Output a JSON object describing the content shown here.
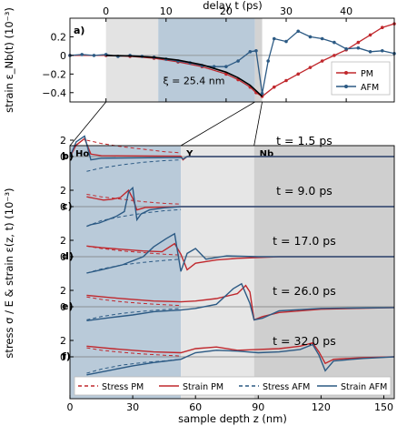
{
  "chart_data": [
    {
      "panel": "a)",
      "type": "line",
      "xlabel": "delay t (ps)",
      "ylabel": "strain ε_Nb(t) (10⁻³)",
      "xlim": [
        -6,
        48
      ],
      "ylim": [
        -0.5,
        0.4
      ],
      "xticks": [
        0,
        10,
        20,
        30,
        40
      ],
      "yticks": [
        0.2,
        0.0,
        -0.2,
        -0.4
      ],
      "ytick_labels": [
        "0.2",
        "0",
        "−0.2",
        "−0.4"
      ],
      "annotation": "ξ = 25.4 nm",
      "shaded_regions": [
        [
          0,
          8.7
        ],
        [
          8.7,
          24.8
        ],
        [
          24.8,
          26.0
        ]
      ],
      "legend": {
        "position": "right",
        "entries": [
          "PM",
          "AFM"
        ]
      },
      "series": [
        {
          "name": "PM",
          "color": "#c0282d",
          "x": [
            -6,
            0,
            4,
            8,
            12,
            16,
            20,
            22,
            24,
            25,
            26,
            28,
            30,
            32,
            34,
            36,
            38,
            40,
            42,
            44,
            46,
            48
          ],
          "y": [
            0,
            0,
            -0.01,
            -0.03,
            -0.07,
            -0.12,
            -0.2,
            -0.26,
            -0.34,
            -0.4,
            -0.44,
            -0.34,
            -0.27,
            -0.2,
            -0.13,
            -0.06,
            0.0,
            0.06,
            0.14,
            0.22,
            0.3,
            0.34
          ]
        },
        {
          "name": "AFM",
          "color": "#2c5a84",
          "x": [
            -6,
            -4,
            -2,
            0,
            2,
            4,
            6,
            8,
            10,
            12,
            14,
            16,
            18,
            20,
            22,
            24,
            25,
            26,
            27,
            28,
            30,
            32,
            34,
            36,
            38,
            40,
            42,
            44,
            46,
            48
          ],
          "y": [
            0,
            0.01,
            0.0,
            0.01,
            -0.01,
            0.0,
            -0.01,
            -0.02,
            -0.04,
            -0.06,
            -0.08,
            -0.11,
            -0.12,
            -0.12,
            -0.06,
            0.04,
            0.05,
            -0.41,
            -0.06,
            0.18,
            0.15,
            0.26,
            0.2,
            0.18,
            0.14,
            0.07,
            0.08,
            0.04,
            0.05,
            0.02
          ]
        },
        {
          "name": "fit",
          "color": "#000000",
          "x": [
            0,
            4,
            8,
            12,
            16,
            20,
            22,
            24,
            25,
            26
          ],
          "y": [
            0,
            -0.005,
            -0.02,
            -0.05,
            -0.1,
            -0.18,
            -0.24,
            -0.32,
            -0.38,
            -0.44
          ]
        }
      ]
    },
    {
      "panel": "b)–f)",
      "type": "line",
      "xlabel": "sample depth z (nm)",
      "ylabel": "stress σ / E & strain ε(z, t) (10⁻³)",
      "xlim": [
        0,
        155
      ],
      "xticks": [
        0,
        30,
        60,
        90,
        120,
        150
      ],
      "yticks": [
        2,
        0
      ],
      "layers": [
        {
          "name": "Ho",
          "z": [
            0,
            53
          ]
        },
        {
          "name": "Y",
          "z": [
            53,
            88
          ]
        },
        {
          "name": "Nb",
          "z": [
            88,
            155
          ]
        }
      ],
      "series_styles": [
        {
          "name": "Stress PM",
          "color": "#c0282d",
          "dash": true
        },
        {
          "name": "Strain PM",
          "color": "#c0282d",
          "dash": false
        },
        {
          "name": "Stress AFM",
          "color": "#2c5a84",
          "dash": true
        },
        {
          "name": "Strain AFM",
          "color": "#2c5a84",
          "dash": false
        }
      ],
      "panels": [
        {
          "label": "b)",
          "time": "t = 1.5 ps",
          "stress_pm": {
            "z": [
              8,
              15,
              25,
              35,
              45,
              53
            ],
            "y": [
              2.0,
              1.6,
              1.2,
              0.9,
              0.6,
              0.45
            ]
          },
          "strain_pm": {
            "z": [
              0,
              3,
              7,
              10,
              15,
              53,
              54,
              56,
              155
            ],
            "y": [
              0,
              1.4,
              2.2,
              0.3,
              0.1,
              0.05,
              -0.4,
              0,
              0
            ]
          },
          "stress_afm": {
            "z": [
              8,
              15,
              25,
              35,
              45,
              53
            ],
            "y": [
              -1.8,
              -1.4,
              -1.0,
              -0.7,
              -0.5,
              -0.4
            ]
          },
          "strain_afm": {
            "z": [
              0,
              3,
              7,
              10,
              15,
              53,
              54,
              56,
              155
            ],
            "y": [
              0,
              1.8,
              2.5,
              -0.4,
              -0.2,
              -0.1,
              -0.3,
              0,
              0
            ]
          }
        },
        {
          "label": "c)",
          "time": "t = 9.0 ps",
          "stress_pm": {
            "z": [
              8,
              15,
              25,
              35,
              45,
              53
            ],
            "y": [
              1.5,
              1.2,
              0.9,
              0.6,
              0.4,
              0.3
            ]
          },
          "strain_pm": {
            "z": [
              8,
              12,
              16,
              20,
              24,
              28,
              30,
              32,
              36,
              53,
              155
            ],
            "y": [
              1.2,
              1.0,
              0.8,
              0.9,
              1.1,
              2.0,
              1.0,
              -0.4,
              -0.1,
              0,
              0
            ]
          },
          "stress_afm": {
            "z": [
              8,
              15,
              25,
              35,
              45,
              53
            ],
            "y": [
              -2.4,
              -1.7,
              -1.2,
              -0.8,
              -0.5,
              -0.35
            ]
          },
          "strain_afm": {
            "z": [
              8,
              10,
              14,
              18,
              22,
              26,
              28,
              30,
              32,
              34,
              38,
              45,
              53,
              155
            ],
            "y": [
              -2.4,
              -2.2,
              -2.0,
              -1.6,
              -1.2,
              -0.6,
              1.8,
              2.3,
              -1.6,
              -0.9,
              -0.4,
              -0.15,
              0,
              0
            ]
          }
        },
        {
          "label": "d)",
          "time": "t = 17.0 ps",
          "stress_pm": {
            "z": [
              8,
              15,
              25,
              35,
              45,
              53
            ],
            "y": [
              1.3,
              1.0,
              0.7,
              0.5,
              0.3,
              0.2
            ]
          },
          "strain_pm": {
            "z": [
              8,
              15,
              25,
              35,
              44,
              50,
              53,
              56,
              60,
              70,
              80,
              100,
              155
            ],
            "y": [
              1.3,
              1.1,
              0.9,
              0.7,
              0.6,
              1.6,
              0.3,
              -1.6,
              -0.8,
              -0.4,
              -0.2,
              0,
              0
            ]
          },
          "stress_afm": {
            "z": [
              8,
              15,
              25,
              35,
              45,
              53
            ],
            "y": [
              -2.0,
              -1.5,
              -1.0,
              -0.7,
              -0.45,
              -0.3
            ]
          },
          "strain_afm": {
            "z": [
              8,
              15,
              25,
              35,
              40,
              46,
              50,
              53,
              56,
              60,
              65,
              75,
              90,
              155
            ],
            "y": [
              -2.0,
              -1.6,
              -1.0,
              0.0,
              1.2,
              2.2,
              2.8,
              -1.8,
              0.4,
              1.0,
              -0.3,
              0.1,
              0,
              0
            ]
          }
        },
        {
          "label": "e)",
          "time": "t = 26.0 ps",
          "stress_pm": {
            "z": [
              8,
              15,
              25,
              35,
              45,
              53
            ],
            "y": [
              1.2,
              0.9,
              0.6,
              0.4,
              0.25,
              0.15
            ]
          },
          "strain_pm": {
            "z": [
              8,
              20,
              30,
              40,
              53,
              60,
              70,
              80,
              84,
              86,
              88,
              92,
              100,
              120,
              155
            ],
            "y": [
              1.4,
              1.1,
              0.9,
              0.7,
              0.6,
              0.7,
              1.0,
              1.6,
              2.6,
              1.8,
              -1.6,
              -1.2,
              -0.7,
              -0.3,
              -0.1
            ]
          },
          "stress_afm": {
            "z": [
              8,
              15,
              25,
              35,
              45,
              53
            ],
            "y": [
              -1.6,
              -1.2,
              -0.8,
              -0.55,
              -0.35,
              -0.2
            ]
          },
          "strain_afm": {
            "z": [
              8,
              20,
              30,
              40,
              53,
              60,
              70,
              78,
              82,
              86,
              88,
              92,
              100,
              120,
              155
            ],
            "y": [
              -1.7,
              -1.3,
              -1.0,
              -0.6,
              -0.4,
              -0.2,
              0.3,
              2.2,
              2.8,
              0.4,
              -1.6,
              -1.4,
              -0.5,
              -0.2,
              -0.1
            ]
          }
        },
        {
          "label": "f)",
          "time": "t = 32.0 ps",
          "stress_pm": {
            "z": [
              8,
              15,
              25,
              35,
              45,
              53
            ],
            "y": [
              1.1,
              0.8,
              0.55,
              0.35,
              0.2,
              0.1
            ]
          },
          "strain_pm": {
            "z": [
              8,
              20,
              30,
              40,
              53,
              60,
              70,
              80,
              90,
              100,
              110,
              116,
              119,
              122,
              126,
              140,
              155
            ],
            "y": [
              1.3,
              1.0,
              0.8,
              0.6,
              0.5,
              1.0,
              1.2,
              0.8,
              0.9,
              1.0,
              1.3,
              1.7,
              0.6,
              -0.8,
              -0.3,
              -0.1,
              0
            ]
          },
          "stress_afm": {
            "z": [
              8,
              15,
              25,
              35,
              45,
              53
            ],
            "y": [
              -2.0,
              -1.5,
              -1.0,
              -0.7,
              -0.5,
              -0.3
            ]
          },
          "strain_afm": {
            "z": [
              8,
              20,
              30,
              40,
              50,
              53,
              60,
              70,
              80,
              90,
              100,
              110,
              116,
              119,
              122,
              126,
              140,
              155
            ],
            "y": [
              -2.2,
              -1.6,
              -1.1,
              -0.7,
              -0.4,
              -0.3,
              0.5,
              0.8,
              0.7,
              0.5,
              0.6,
              0.9,
              1.5,
              0.2,
              -1.7,
              -0.5,
              -0.2,
              0
            ]
          }
        }
      ]
    }
  ]
}
